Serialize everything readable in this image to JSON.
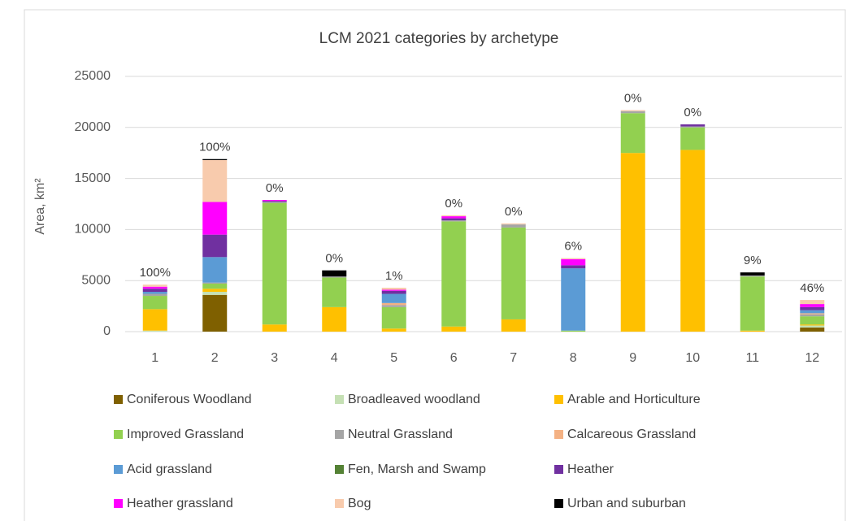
{
  "chart_data": {
    "type": "stacked_bar",
    "title": "LCM 2021 categories by archetype",
    "y_label": "Area, km²",
    "categories": [
      "1",
      "2",
      "3",
      "4",
      "5",
      "6",
      "7",
      "8",
      "9",
      "10",
      "11",
      "12"
    ],
    "annotations": [
      "100%",
      "100%",
      "0%",
      "0%",
      "1%",
      "0%",
      "0%",
      "6%",
      "0%",
      "0%",
      "9%",
      "46%"
    ],
    "ylim": [
      0,
      25000
    ],
    "yticks": [
      0,
      5000,
      10000,
      15000,
      20000,
      25000
    ],
    "grid": true,
    "series": [
      {
        "name": "Coniferous Woodland",
        "color": "#7f6000",
        "values": [
          0,
          3600,
          0,
          0,
          0,
          0,
          0,
          0,
          0,
          0,
          0,
          400
        ]
      },
      {
        "name": "Broadleaved woodland",
        "color": "#c5e0b4",
        "values": [
          100,
          300,
          0,
          0,
          0,
          0,
          0,
          0,
          0,
          0,
          0,
          200
        ]
      },
      {
        "name": "Arable and Horticulture",
        "color": "#ffc000",
        "values": [
          2100,
          300,
          700,
          2400,
          300,
          500,
          1200,
          0,
          17500,
          17800,
          100,
          100
        ]
      },
      {
        "name": "Improved Grassland",
        "color": "#92d050",
        "values": [
          1300,
          500,
          11900,
          2900,
          2100,
          10300,
          9000,
          100,
          3900,
          2200,
          5300,
          800
        ]
      },
      {
        "name": "Neutral Grassland",
        "color": "#a5a5a5",
        "values": [
          200,
          100,
          100,
          100,
          200,
          100,
          300,
          0,
          200,
          100,
          100,
          200
        ]
      },
      {
        "name": "Calcareous Grassland",
        "color": "#f4b183",
        "values": [
          0,
          0,
          0,
          0,
          200,
          0,
          0,
          0,
          0,
          0,
          0,
          100
        ]
      },
      {
        "name": "Acid grassland",
        "color": "#5b9bd5",
        "values": [
          200,
          2500,
          0,
          0,
          900,
          0,
          0,
          6100,
          0,
          0,
          0,
          300
        ]
      },
      {
        "name": "Fen, Marsh and Swamp",
        "color": "#548235",
        "values": [
          0,
          0,
          0,
          0,
          0,
          0,
          0,
          0,
          0,
          0,
          0,
          0
        ]
      },
      {
        "name": "Heather",
        "color": "#7030a0",
        "values": [
          300,
          2200,
          100,
          0,
          300,
          200,
          0,
          300,
          0,
          200,
          0,
          300
        ]
      },
      {
        "name": "Heather grassland",
        "color": "#ff00ff",
        "values": [
          200,
          3200,
          100,
          0,
          100,
          200,
          0,
          600,
          0,
          0,
          0,
          300
        ]
      },
      {
        "name": "Bog",
        "color": "#f8cbad",
        "values": [
          200,
          4100,
          0,
          0,
          200,
          100,
          100,
          100,
          100,
          0,
          0,
          400
        ]
      },
      {
        "name": "Urban and suburban",
        "color": "#000000",
        "values": [
          0,
          100,
          0,
          600,
          0,
          0,
          0,
          0,
          0,
          0,
          300,
          0
        ]
      }
    ]
  }
}
